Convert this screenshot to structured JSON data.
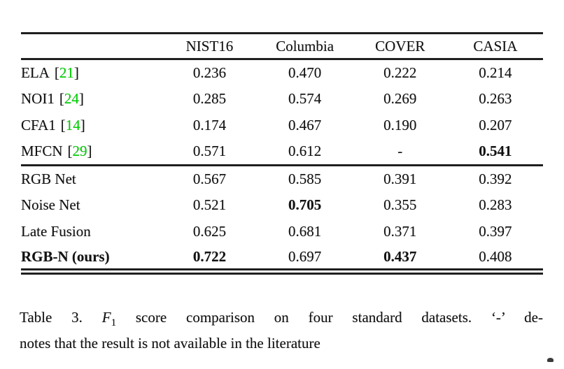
{
  "colors": {
    "background": "#ffffff",
    "text": "#131313",
    "rule": "#1f1f1f",
    "citation": "#00d300"
  },
  "table": {
    "headers": [
      "NIST16",
      "Columbia",
      "COVER",
      "CASIA"
    ],
    "cite_brackets": {
      "open": "[",
      "close": "]"
    },
    "rows": [
      {
        "method": "ELA",
        "cite": "21",
        "values": [
          "0.236",
          "0.470",
          "0.222",
          "0.214"
        ],
        "bold_method": false,
        "bold_cols": []
      },
      {
        "method": "NOI1",
        "cite": "24",
        "values": [
          "0.285",
          "0.574",
          "0.269",
          "0.263"
        ],
        "bold_method": false,
        "bold_cols": []
      },
      {
        "method": "CFA1",
        "cite": "14",
        "values": [
          "0.174",
          "0.467",
          "0.190",
          "0.207"
        ],
        "bold_method": false,
        "bold_cols": []
      },
      {
        "method": "MFCN",
        "cite": "29",
        "values": [
          "0.571",
          "0.612",
          "-",
          "0.541"
        ],
        "bold_method": false,
        "bold_cols": [
          3
        ]
      },
      {
        "method": "RGB Net",
        "values": [
          "0.567",
          "0.585",
          "0.391",
          "0.392"
        ],
        "bold_method": false,
        "bold_cols": []
      },
      {
        "method": "Noise Net",
        "values": [
          "0.521",
          "0.705",
          "0.355",
          "0.283"
        ],
        "bold_method": false,
        "bold_cols": [
          1
        ]
      },
      {
        "method": "Late Fusion",
        "values": [
          "0.625",
          "0.681",
          "0.371",
          "0.397"
        ],
        "bold_method": false,
        "bold_cols": []
      },
      {
        "method": "RGB-N (ours)",
        "values": [
          "0.722",
          "0.697",
          "0.437",
          "0.408"
        ],
        "bold_method": true,
        "bold_cols": [
          0,
          2
        ]
      }
    ]
  },
  "caption": {
    "label": "Table 3. ",
    "metric_symbol": "F",
    "metric_subscript": "1",
    "line1_rest": " score comparison on four standard datasets.  ‘-’ de-",
    "line2": "notes that the result is not available in the literature"
  }
}
